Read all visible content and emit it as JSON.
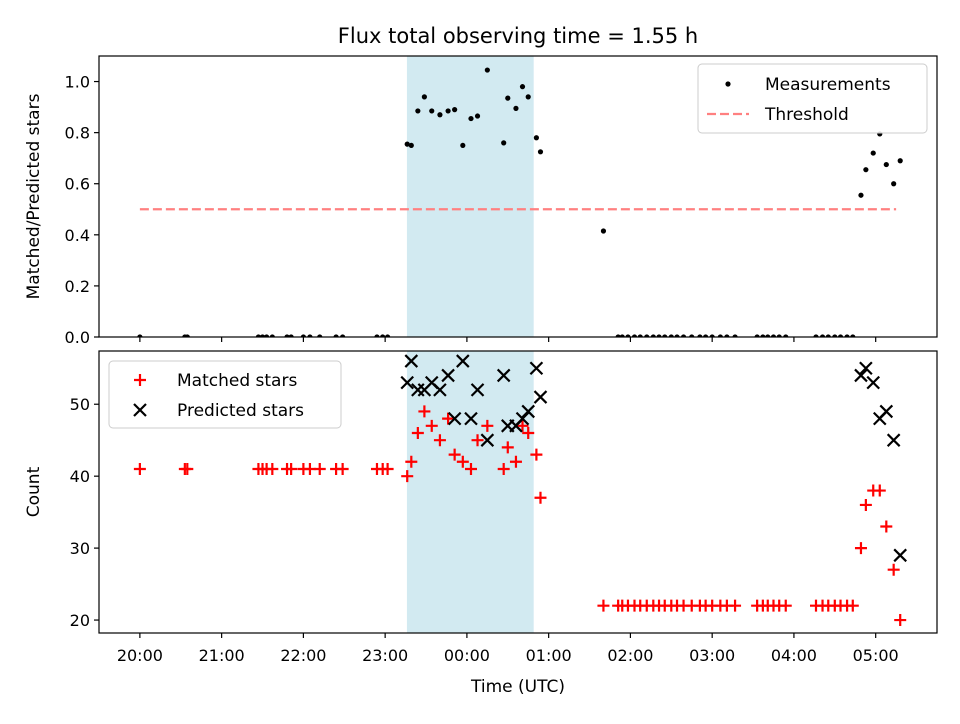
{
  "figure": {
    "title": "Flux total observing time = 1.55 h"
  },
  "chart_data": [
    {
      "type": "scatter",
      "title": "Flux total observing time = 1.55 h",
      "xlabel": "Time (UTC)",
      "ylabel": "Matched/Predicted stars",
      "x_unit": "hours since 20:00 UTC",
      "xlim": [
        -0.5,
        9.75
      ],
      "ylim": [
        0,
        1.1
      ],
      "yticks": [
        "0.0",
        "0.2",
        "0.4",
        "0.6",
        "0.8",
        "1.0"
      ],
      "shaded_region": {
        "x_start": "23:16",
        "x_end": "00:49",
        "color": "#add8e6"
      },
      "legend": {
        "position": "top-right",
        "entries": [
          "Measurements",
          "Threshold"
        ]
      },
      "series": [
        {
          "name": "Measurements",
          "marker": "dot",
          "color": "#000000",
          "x": [
            0.0,
            0.55,
            0.58,
            1.45,
            1.5,
            1.55,
            1.62,
            1.8,
            1.85,
            2.0,
            2.08,
            2.2,
            2.4,
            2.48,
            2.9,
            2.97,
            3.03,
            3.27,
            3.32,
            3.4,
            3.48,
            3.57,
            3.67,
            3.77,
            3.85,
            3.95,
            4.05,
            4.13,
            4.25,
            4.45,
            4.5,
            4.6,
            4.68,
            4.75,
            4.85,
            4.9,
            5.67,
            5.85,
            5.9,
            5.97,
            6.05,
            6.12,
            6.2,
            6.28,
            6.35,
            6.42,
            6.5,
            6.57,
            6.65,
            6.75,
            6.85,
            6.92,
            7.0,
            7.1,
            7.18,
            7.28,
            7.55,
            7.62,
            7.68,
            7.75,
            7.82,
            7.9,
            8.27,
            8.35,
            8.42,
            8.5,
            8.57,
            8.65,
            8.72,
            8.82,
            8.88,
            8.97,
            9.05,
            9.13,
            9.22,
            9.3
          ],
          "y": [
            0,
            0,
            0,
            0,
            0,
            0,
            0,
            0,
            0,
            0,
            0,
            0,
            0,
            0,
            0,
            0,
            0,
            0.755,
            0.75,
            0.885,
            0.94,
            0.885,
            0.87,
            0.885,
            0.89,
            0.75,
            0.855,
            0.865,
            1.045,
            0.76,
            0.935,
            0.895,
            0.98,
            0.94,
            0.78,
            0.725,
            0.415,
            0,
            0,
            0,
            0,
            0,
            0,
            0,
            0,
            0,
            0,
            0,
            0,
            0,
            0,
            0,
            0,
            0,
            0,
            0,
            0,
            0,
            0,
            0,
            0,
            0,
            0,
            0,
            0,
            0,
            0,
            0,
            0,
            0.555,
            0.655,
            0.72,
            0.795,
            0.675,
            0.6,
            0.69
          ]
        },
        {
          "name": "Threshold",
          "style": "dashed",
          "color": "#ff8080",
          "x": [
            0.0,
            9.25
          ],
          "y": [
            0.5,
            0.5
          ]
        }
      ]
    },
    {
      "type": "scatter",
      "xlabel": "Time (UTC)",
      "ylabel": "Count",
      "x_unit": "hours since 20:00 UTC",
      "xlim": [
        -0.5,
        9.75
      ],
      "ylim": [
        18.2,
        57.4
      ],
      "yticks": [
        "20",
        "30",
        "40",
        "50"
      ],
      "xticks": [
        "20:00",
        "21:00",
        "22:00",
        "23:00",
        "00:00",
        "01:00",
        "02:00",
        "03:00",
        "04:00",
        "05:00"
      ],
      "shaded_region": {
        "x_start": "23:16",
        "x_end": "00:49",
        "color": "#add8e6"
      },
      "legend": {
        "position": "top-left",
        "entries": [
          "Matched stars",
          "Predicted stars"
        ]
      },
      "series": [
        {
          "name": "Matched stars",
          "marker": "plus",
          "color": "#ff0000",
          "x": [
            0.0,
            0.55,
            0.58,
            1.45,
            1.5,
            1.55,
            1.62,
            1.8,
            1.85,
            2.0,
            2.08,
            2.2,
            2.4,
            2.48,
            2.9,
            2.97,
            3.03,
            3.27,
            3.32,
            3.4,
            3.48,
            3.57,
            3.67,
            3.77,
            3.85,
            3.95,
            4.05,
            4.13,
            4.25,
            4.45,
            4.5,
            4.6,
            4.68,
            4.75,
            4.85,
            4.9,
            5.67,
            5.85,
            5.9,
            5.97,
            6.05,
            6.12,
            6.2,
            6.28,
            6.35,
            6.42,
            6.5,
            6.57,
            6.65,
            6.75,
            6.85,
            6.92,
            7.0,
            7.1,
            7.18,
            7.28,
            7.55,
            7.62,
            7.68,
            7.75,
            7.82,
            7.9,
            8.27,
            8.35,
            8.42,
            8.5,
            8.57,
            8.65,
            8.72,
            8.82,
            8.88,
            8.97,
            9.05,
            9.13,
            9.22,
            9.3
          ],
          "y": [
            41,
            41,
            41,
            41,
            41,
            41,
            41,
            41,
            41,
            41,
            41,
            41,
            41,
            41,
            41,
            41,
            41,
            40,
            42,
            46,
            49,
            47,
            45,
            48,
            43,
            42,
            41,
            45,
            47,
            41,
            44,
            42,
            47,
            46,
            43,
            37,
            22,
            22,
            22,
            22,
            22,
            22,
            22,
            22,
            22,
            22,
            22,
            22,
            22,
            22,
            22,
            22,
            22,
            22,
            22,
            22,
            22,
            22,
            22,
            22,
            22,
            22,
            22,
            22,
            22,
            22,
            22,
            22,
            22,
            30,
            36,
            38,
            38,
            33,
            27,
            20
          ]
        },
        {
          "name": "Predicted stars",
          "marker": "x",
          "color": "#000000",
          "x": [
            3.27,
            3.32,
            3.4,
            3.48,
            3.57,
            3.67,
            3.77,
            3.85,
            3.95,
            4.05,
            4.13,
            4.25,
            4.45,
            4.5,
            4.6,
            4.68,
            4.75,
            4.85,
            4.9,
            8.82,
            8.88,
            8.97,
            9.05,
            9.13,
            9.22,
            9.3
          ],
          "y": [
            53,
            56,
            52,
            52,
            53,
            52,
            54,
            48,
            56,
            48,
            52,
            45,
            54,
            47,
            47,
            48,
            49,
            55,
            51,
            54,
            55,
            53,
            48,
            49,
            45,
            29
          ]
        }
      ]
    }
  ]
}
